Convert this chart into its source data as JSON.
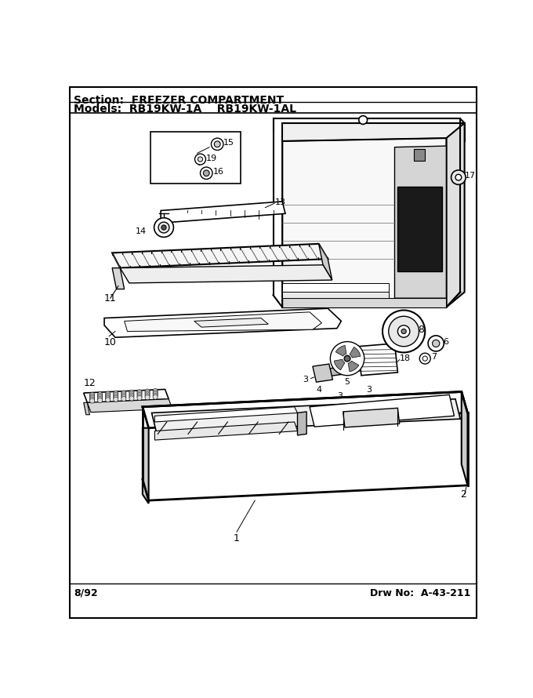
{
  "section_label": "Section:  FREEZER COMPARTMENT",
  "models_label": "Models:  RB19KW-1A    RB19KW-1AL",
  "date_label": "8/92",
  "drw_label": "Drw No:  A-43-211",
  "bg_color": "#ffffff",
  "border_color": "#000000",
  "text_color": "#000000",
  "title_font_size": 10,
  "label_font_size": 8,
  "footer_font_size": 9
}
